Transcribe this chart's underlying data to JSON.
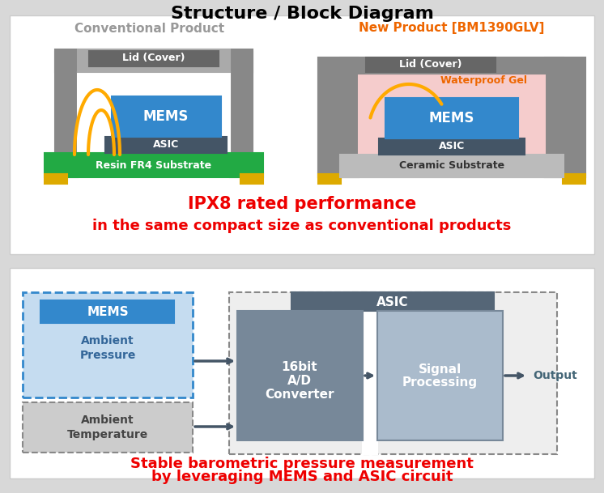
{
  "title": "Structure / Block Diagram",
  "title_fontsize": 16,
  "title_color": "#000000",
  "bg_color": "#d8d8d8",
  "panel1_bg": "#ffffff",
  "panel2_bg": "#ffffff",
  "conv_title": "Conventional Product",
  "conv_title_color": "#999999",
  "new_title": "New Product [BM1390GLV]",
  "new_title_color": "#ee6600",
  "ipx8_line1": "IPX8 rated performance",
  "ipx8_line2": "in the same compact size as conventional products",
  "ipx8_color": "#ee0000",
  "stable_line1": "Stable barometric pressure measurement",
  "stable_line2": "by leveraging MEMS and ASIC circuit",
  "stable_color": "#ee0000",
  "mems_color": "#3388cc",
  "asic_color": "#445566",
  "substrate_green": "#22aa44",
  "substrate_gray": "#aaaaaa",
  "lid_color": "#888888",
  "wire_color": "#ffaa00",
  "gel_color": "#f5cccc",
  "block_blue_light": "#c5dcf0",
  "block_blue_dark": "#3388cc",
  "block_gray_dark": "#778899",
  "block_gray_med": "#778899",
  "block_gray_light": "#aabbcc",
  "dashed_border_blue": "#3388cc",
  "dashed_border_gray": "#888888",
  "asic_header_color": "#556677",
  "output_text_color": "#446677",
  "yellow_pad": "#ddaa00"
}
